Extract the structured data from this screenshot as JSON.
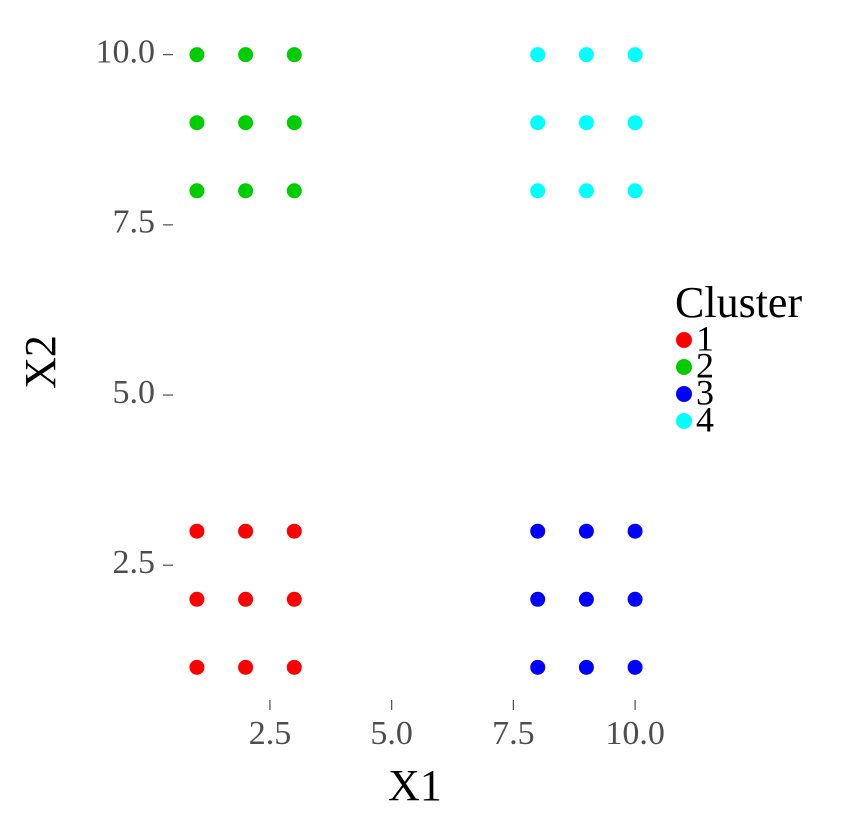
{
  "chart_data": {
    "type": "scatter",
    "x_label": "X1",
    "y_label": "X2",
    "legend_title": "Cluster",
    "legend_position": "right",
    "xlim": [
      0.55,
      10.45
    ],
    "ylim": [
      0.55,
      10.45
    ],
    "xticks": [
      2.5,
      {
        "value": 5,
        "label": "5.0"
      },
      7.5,
      {
        "value": 10,
        "label": "10.0"
      }
    ],
    "yticks": [
      2.5,
      {
        "value": 5,
        "label": "5.0"
      },
      7.5,
      {
        "value": 10,
        "label": "10.0"
      }
    ],
    "grid": false,
    "series": [
      {
        "name": "1",
        "color": "#ff0000",
        "x": [
          1,
          2,
          3,
          1,
          2,
          3,
          1,
          2,
          3
        ],
        "values": [
          1,
          1,
          1,
          2,
          2,
          2,
          3,
          3,
          3
        ]
      },
      {
        "name": "2",
        "color": "#00cd00",
        "x": [
          1,
          2,
          3,
          1,
          2,
          3,
          1,
          2,
          3
        ],
        "values": [
          8,
          8,
          8,
          9,
          9,
          9,
          10,
          10,
          10
        ]
      },
      {
        "name": "3",
        "color": "#0000ff",
        "x": [
          8,
          9,
          10,
          8,
          9,
          10,
          8,
          9,
          10
        ],
        "values": [
          1,
          1,
          1,
          2,
          2,
          2,
          3,
          3,
          3
        ]
      },
      {
        "name": "4",
        "color": "#00ffff",
        "x": [
          8,
          9,
          10,
          8,
          9,
          10,
          8,
          9,
          10
        ],
        "values": [
          8,
          8,
          8,
          9,
          9,
          9,
          10,
          10,
          10
        ]
      }
    ]
  }
}
